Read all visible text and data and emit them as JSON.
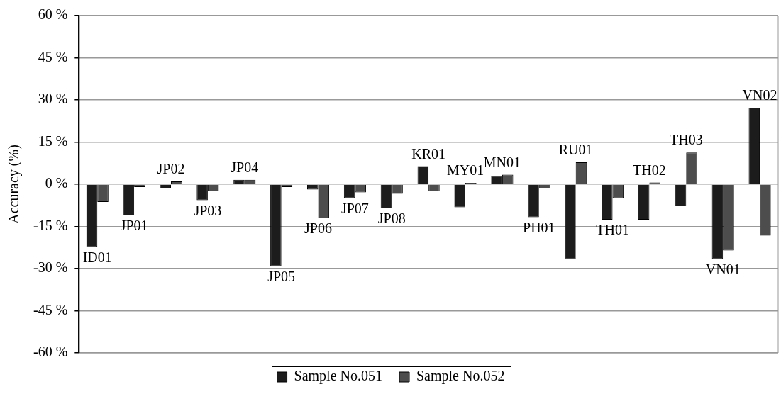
{
  "chart_data": {
    "type": "bar",
    "ylabel": "Accuracy (%)",
    "categories": [
      "ID01",
      "JP01",
      "JP02",
      "JP03",
      "JP04",
      "JP05",
      "JP06",
      "JP07",
      "JP08",
      "KR01",
      "MY01",
      "MN01",
      "PH01",
      "RU01",
      "TH01",
      "TH02",
      "TH03",
      "VN01",
      "VN02"
    ],
    "series": [
      {
        "name": "Sample No.051",
        "color": "#1c1c1c",
        "values": [
          -22.3,
          -11.1,
          -1.5,
          -5.7,
          1.6,
          -29.1,
          -1.9,
          -4.9,
          -8.6,
          6.4,
          -8.2,
          2.9,
          -11.7,
          -26.6,
          -12.6,
          -12.6,
          -7.8,
          -26.6,
          27.2
        ]
      },
      {
        "name": "Sample No.052",
        "color": "#4d4d4d",
        "values": [
          -6.3,
          -1,
          1,
          -2.5,
          1.6,
          -1,
          -12.1,
          -2.9,
          -3.4,
          -2.5,
          0.5,
          3.4,
          -1.5,
          7.8,
          -4.9,
          0.6,
          11.3,
          -23.6,
          -18.3
        ]
      }
    ],
    "ylim": [
      -60,
      60
    ],
    "yticks": [
      {
        "value": -60,
        "label": "-60 %"
      },
      {
        "value": -45,
        "label": "-45 %"
      },
      {
        "value": -30,
        "label": "-30 %"
      },
      {
        "value": -15,
        "label": "-15 %"
      },
      {
        "value": 0,
        "label": "0 %"
      },
      {
        "value": 15,
        "label": "15 %"
      },
      {
        "value": 30,
        "label": "30 %"
      },
      {
        "value": 45,
        "label": "45 %"
      },
      {
        "value": 60,
        "label": "60 %"
      }
    ],
    "grid": "y",
    "legend": "bottom"
  }
}
